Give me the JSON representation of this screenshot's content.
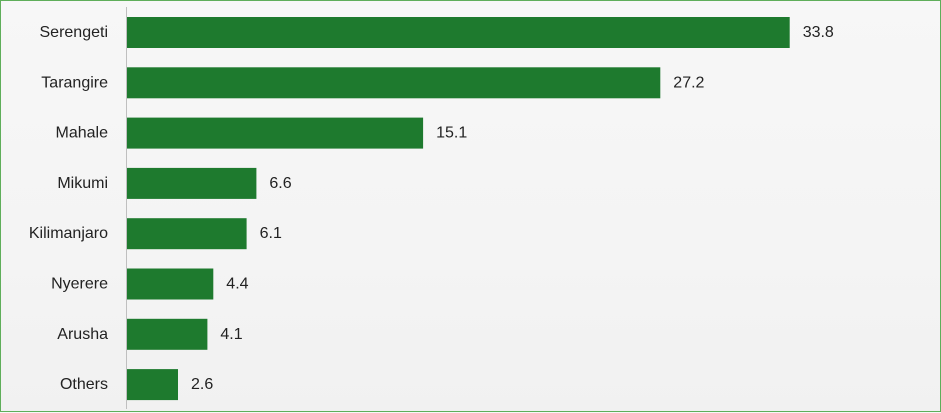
{
  "chart_data": {
    "type": "bar",
    "orientation": "horizontal",
    "categories": [
      "Serengeti",
      "Tarangire",
      "Mahale",
      "Mikumi",
      "Kilimanjaro",
      "Nyerere",
      "Arusha",
      "Others"
    ],
    "values": [
      33.8,
      27.2,
      15.1,
      6.6,
      6.1,
      4.4,
      4.1,
      2.6
    ],
    "title": "",
    "xlabel": "",
    "ylabel": "",
    "xlim": [
      0,
      40.8
    ],
    "grid": false,
    "legend": "none",
    "bar_color": "#1e7a2e",
    "frame_color": "#5fae5a",
    "axis_color": "#bfbfbf",
    "text_color": "#222222"
  }
}
